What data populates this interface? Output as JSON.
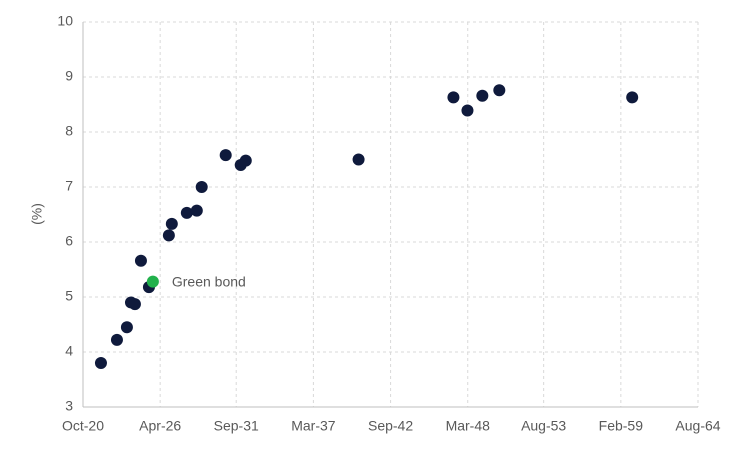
{
  "chart_data": {
    "type": "scatter",
    "ylabel": "(%)",
    "series": [
      {
        "color": "#0f1a3c",
        "x": [
          2022.03,
          2023.17,
          2023.88,
          2024.17,
          2024.45,
          2024.88,
          2025.45,
          2026.87,
          2027.08,
          2028.15,
          2028.86,
          2029.21,
          2030.92,
          2031.99,
          2032.35,
          2040.39,
          2047.15,
          2048.15,
          2049.21,
          2050.42,
          2059.89
        ],
        "values": [
          3.8,
          4.22,
          4.45,
          4.9,
          4.87,
          5.66,
          5.18,
          6.12,
          6.33,
          6.53,
          6.57,
          7.0,
          7.58,
          7.4,
          7.48,
          7.5,
          8.63,
          8.39,
          8.66,
          8.76,
          8.63
        ]
      },
      {
        "name": "Green bond",
        "color": "#22b14c",
        "x": [
          2025.73
        ],
        "values": [
          5.28
        ]
      }
    ],
    "xlim": [
      2020.75,
      2064.58
    ],
    "xticks": [
      {
        "value": 2020.75,
        "label": "Oct-20"
      },
      {
        "value": 2026.25,
        "label": "Apr-26"
      },
      {
        "value": 2031.67,
        "label": "Sep-31"
      },
      {
        "value": 2037.17,
        "label": "Mar-37"
      },
      {
        "value": 2042.67,
        "label": "Sep-42"
      },
      {
        "value": 2048.17,
        "label": "Mar-48"
      },
      {
        "value": 2053.58,
        "label": "Aug-53"
      },
      {
        "value": 2059.08,
        "label": "Feb-59"
      },
      {
        "value": 2064.58,
        "label": "Aug-64"
      }
    ],
    "ylim": [
      3,
      10
    ],
    "yticks": [
      3,
      4,
      5,
      6,
      7,
      8,
      9,
      10
    ],
    "grid": true
  }
}
